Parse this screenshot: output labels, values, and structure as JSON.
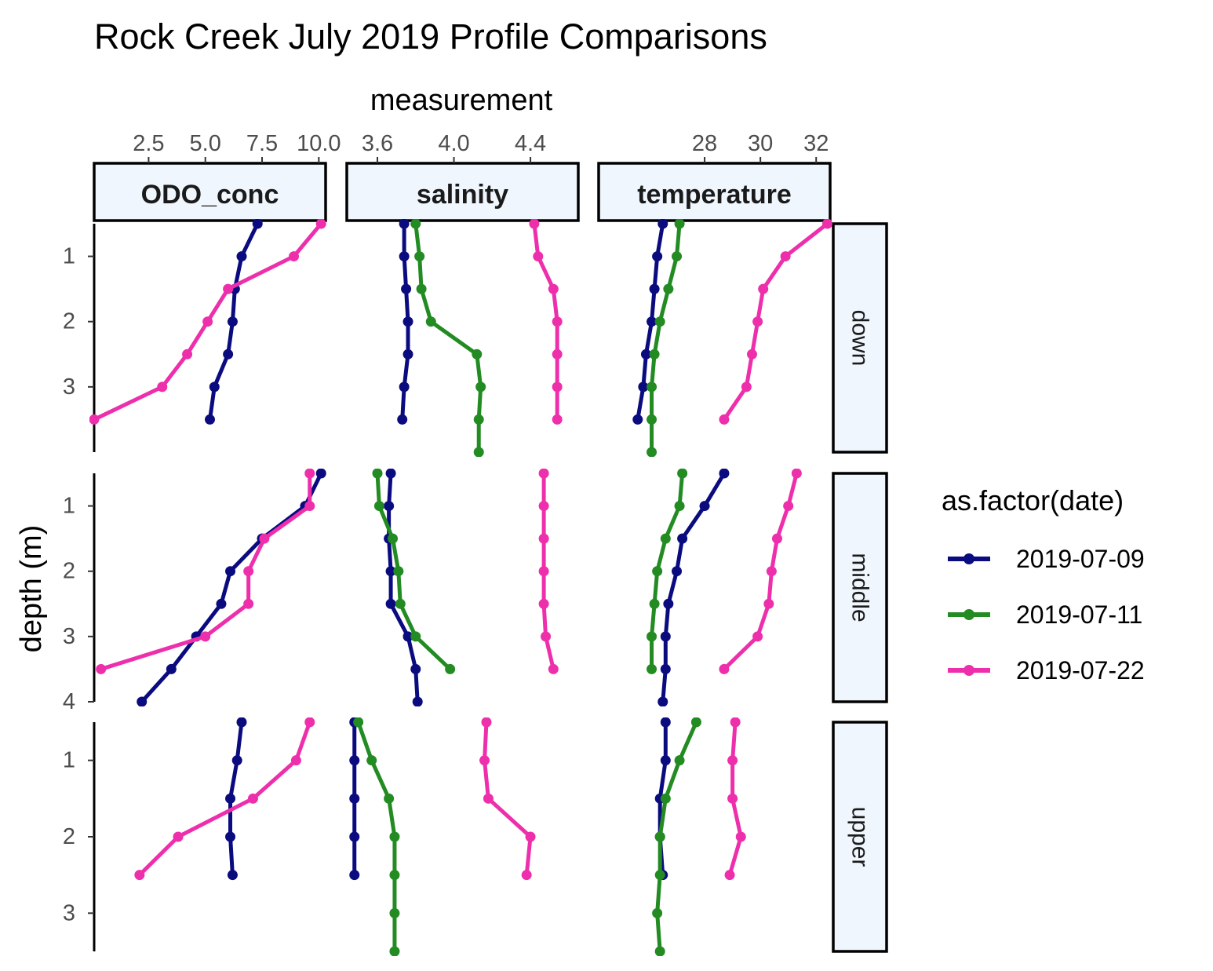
{
  "chart_data": {
    "type": "line",
    "title": "Rock Creek July 2019 Profile Comparisons",
    "xlabel": "measurement",
    "ylabel": "depth (m)",
    "y_reversed": true,
    "grid": false,
    "legend": {
      "title": "as.factor(date)",
      "placement": "right",
      "entries": [
        {
          "label": "2019-07-09",
          "color": "#0b0b80"
        },
        {
          "label": "2019-07-11",
          "color": "#228b22"
        },
        {
          "label": "2019-07-22",
          "color": "#ee2fac"
        }
      ]
    },
    "columns": [
      {
        "key": "ODO_conc",
        "label": "ODO_conc",
        "xlim": [
          0.1,
          10.3
        ],
        "xticks": [
          2.5,
          5.0,
          7.5,
          10.0
        ],
        "xtick_labels": [
          "2.5",
          "5.0",
          "7.5",
          "10.0"
        ]
      },
      {
        "key": "salinity",
        "label": "salinity",
        "xlim": [
          3.44,
          4.65
        ],
        "xticks": [
          3.6,
          4.0,
          4.4
        ],
        "xtick_labels": [
          "3.6",
          "4.0",
          "4.4"
        ]
      },
      {
        "key": "temperature",
        "label": "temperature",
        "xlim": [
          24.2,
          32.5
        ],
        "xticks": [
          28,
          30,
          32
        ],
        "xtick_labels": [
          "28",
          "30",
          "32"
        ]
      }
    ],
    "rows": [
      {
        "key": "down",
        "label": "down",
        "ylim": [
          0.5,
          4.0
        ],
        "yticks": [
          1,
          2,
          3
        ],
        "ytick_labels": [
          "1",
          "2",
          "3"
        ]
      },
      {
        "key": "middle",
        "label": "middle",
        "ylim": [
          0.5,
          4.0
        ],
        "yticks": [
          1,
          2,
          3,
          4
        ],
        "ytick_labels": [
          "1",
          "2",
          "3",
          "4"
        ]
      },
      {
        "key": "upper",
        "label": "upper",
        "ylim": [
          0.5,
          3.5
        ],
        "yticks": [
          1,
          2,
          3
        ],
        "ytick_labels": [
          "1",
          "2",
          "3"
        ]
      }
    ],
    "panels": [
      {
        "row": "down",
        "col": "ODO_conc",
        "series": [
          {
            "date": "2019-07-09",
            "points": [
              [
                0.5,
                7.3
              ],
              [
                1.0,
                6.6
              ],
              [
                1.5,
                6.3
              ],
              [
                2.0,
                6.2
              ],
              [
                2.5,
                6.0
              ],
              [
                3.0,
                5.4
              ],
              [
                3.5,
                5.2
              ]
            ]
          },
          {
            "date": "2019-07-22",
            "points": [
              [
                0.5,
                10.1
              ],
              [
                1.0,
                8.9
              ],
              [
                1.5,
                6.0
              ],
              [
                2.0,
                5.1
              ],
              [
                2.5,
                4.2
              ],
              [
                3.0,
                3.1
              ],
              [
                3.5,
                0.1
              ]
            ]
          }
        ]
      },
      {
        "row": "down",
        "col": "salinity",
        "series": [
          {
            "date": "2019-07-09",
            "points": [
              [
                0.5,
                3.74
              ],
              [
                1.0,
                3.74
              ],
              [
                1.5,
                3.75
              ],
              [
                2.0,
                3.76
              ],
              [
                2.5,
                3.76
              ],
              [
                3.0,
                3.74
              ],
              [
                3.5,
                3.73
              ]
            ]
          },
          {
            "date": "2019-07-11",
            "points": [
              [
                0.5,
                3.8
              ],
              [
                1.0,
                3.82
              ],
              [
                1.5,
                3.83
              ],
              [
                2.0,
                3.88
              ],
              [
                2.5,
                4.12
              ],
              [
                3.0,
                4.14
              ],
              [
                3.5,
                4.13
              ],
              [
                4.0,
                4.13
              ]
            ]
          },
          {
            "date": "2019-07-22",
            "points": [
              [
                0.5,
                4.42
              ],
              [
                1.0,
                4.44
              ],
              [
                1.5,
                4.52
              ],
              [
                2.0,
                4.54
              ],
              [
                2.5,
                4.54
              ],
              [
                3.0,
                4.54
              ],
              [
                3.5,
                4.54
              ]
            ]
          }
        ]
      },
      {
        "row": "down",
        "col": "temperature",
        "series": [
          {
            "date": "2019-07-09",
            "points": [
              [
                0.5,
                26.5
              ],
              [
                1.0,
                26.3
              ],
              [
                1.5,
                26.2
              ],
              [
                2.0,
                26.1
              ],
              [
                2.5,
                25.9
              ],
              [
                3.0,
                25.8
              ],
              [
                3.5,
                25.6
              ]
            ]
          },
          {
            "date": "2019-07-11",
            "points": [
              [
                0.5,
                27.1
              ],
              [
                1.0,
                27.0
              ],
              [
                1.5,
                26.7
              ],
              [
                2.0,
                26.4
              ],
              [
                2.5,
                26.2
              ],
              [
                3.0,
                26.1
              ],
              [
                3.5,
                26.1
              ],
              [
                4.0,
                26.1
              ]
            ]
          },
          {
            "date": "2019-07-22",
            "points": [
              [
                0.5,
                32.4
              ],
              [
                1.0,
                30.9
              ],
              [
                1.5,
                30.1
              ],
              [
                2.0,
                29.9
              ],
              [
                2.5,
                29.7
              ],
              [
                3.0,
                29.5
              ],
              [
                3.5,
                28.7
              ]
            ]
          }
        ]
      },
      {
        "row": "middle",
        "col": "ODO_conc",
        "series": [
          {
            "date": "2019-07-09",
            "points": [
              [
                0.5,
                10.1
              ],
              [
                1.0,
                9.4
              ],
              [
                1.5,
                7.5
              ],
              [
                2.0,
                6.1
              ],
              [
                2.5,
                5.7
              ],
              [
                3.0,
                4.6
              ],
              [
                3.5,
                3.5
              ],
              [
                4.0,
                2.2
              ]
            ]
          },
          {
            "date": "2019-07-22",
            "points": [
              [
                0.5,
                9.6
              ],
              [
                1.0,
                9.6
              ],
              [
                1.5,
                7.6
              ],
              [
                2.0,
                6.9
              ],
              [
                2.5,
                6.9
              ],
              [
                3.0,
                5.0
              ],
              [
                3.5,
                0.4
              ]
            ]
          }
        ]
      },
      {
        "row": "middle",
        "col": "salinity",
        "series": [
          {
            "date": "2019-07-09",
            "points": [
              [
                0.5,
                3.67
              ],
              [
                1.0,
                3.66
              ],
              [
                1.5,
                3.66
              ],
              [
                2.0,
                3.67
              ],
              [
                2.5,
                3.67
              ],
              [
                3.0,
                3.76
              ],
              [
                3.5,
                3.8
              ],
              [
                4.0,
                3.81
              ]
            ]
          },
          {
            "date": "2019-07-11",
            "points": [
              [
                0.5,
                3.6
              ],
              [
                1.0,
                3.61
              ],
              [
                1.5,
                3.68
              ],
              [
                2.0,
                3.71
              ],
              [
                2.5,
                3.72
              ],
              [
                3.0,
                3.8
              ],
              [
                3.5,
                3.98
              ]
            ]
          },
          {
            "date": "2019-07-22",
            "points": [
              [
                0.5,
                4.47
              ],
              [
                1.0,
                4.47
              ],
              [
                1.5,
                4.47
              ],
              [
                2.0,
                4.47
              ],
              [
                2.5,
                4.47
              ],
              [
                3.0,
                4.48
              ],
              [
                3.5,
                4.52
              ]
            ]
          }
        ]
      },
      {
        "row": "middle",
        "col": "temperature",
        "series": [
          {
            "date": "2019-07-09",
            "points": [
              [
                0.5,
                28.7
              ],
              [
                1.0,
                28.0
              ],
              [
                1.5,
                27.2
              ],
              [
                2.0,
                27.0
              ],
              [
                2.5,
                26.7
              ],
              [
                3.0,
                26.6
              ],
              [
                3.5,
                26.6
              ],
              [
                4.0,
                26.5
              ]
            ]
          },
          {
            "date": "2019-07-11",
            "points": [
              [
                0.5,
                27.2
              ],
              [
                1.0,
                27.1
              ],
              [
                1.5,
                26.6
              ],
              [
                2.0,
                26.3
              ],
              [
                2.5,
                26.2
              ],
              [
                3.0,
                26.1
              ],
              [
                3.5,
                26.1
              ]
            ]
          },
          {
            "date": "2019-07-22",
            "points": [
              [
                0.5,
                31.3
              ],
              [
                1.0,
                31.0
              ],
              [
                1.5,
                30.6
              ],
              [
                2.0,
                30.4
              ],
              [
                2.5,
                30.3
              ],
              [
                3.0,
                29.9
              ],
              [
                3.5,
                28.7
              ]
            ]
          }
        ]
      },
      {
        "row": "upper",
        "col": "ODO_conc",
        "series": [
          {
            "date": "2019-07-09",
            "points": [
              [
                0.5,
                6.6
              ],
              [
                1.0,
                6.4
              ],
              [
                1.5,
                6.1
              ],
              [
                2.0,
                6.1
              ],
              [
                2.5,
                6.2
              ]
            ]
          },
          {
            "date": "2019-07-22",
            "points": [
              [
                0.5,
                9.6
              ],
              [
                1.0,
                9.0
              ],
              [
                1.5,
                7.1
              ],
              [
                2.0,
                3.8
              ],
              [
                2.5,
                2.1
              ]
            ]
          }
        ]
      },
      {
        "row": "upper",
        "col": "salinity",
        "series": [
          {
            "date": "2019-07-09",
            "points": [
              [
                0.5,
                3.48
              ],
              [
                1.0,
                3.48
              ],
              [
                1.5,
                3.48
              ],
              [
                2.0,
                3.48
              ],
              [
                2.5,
                3.48
              ]
            ]
          },
          {
            "date": "2019-07-11",
            "points": [
              [
                0.5,
                3.5
              ],
              [
                1.0,
                3.57
              ],
              [
                1.5,
                3.66
              ],
              [
                2.0,
                3.69
              ],
              [
                2.5,
                3.69
              ],
              [
                3.0,
                3.69
              ],
              [
                3.5,
                3.69
              ]
            ]
          },
          {
            "date": "2019-07-22",
            "points": [
              [
                0.5,
                4.17
              ],
              [
                1.0,
                4.16
              ],
              [
                1.5,
                4.18
              ],
              [
                2.0,
                4.4
              ],
              [
                2.5,
                4.38
              ]
            ]
          }
        ]
      },
      {
        "row": "upper",
        "col": "temperature",
        "series": [
          {
            "date": "2019-07-09",
            "points": [
              [
                0.5,
                26.6
              ],
              [
                1.0,
                26.6
              ],
              [
                1.5,
                26.4
              ],
              [
                2.0,
                26.4
              ],
              [
                2.5,
                26.5
              ]
            ]
          },
          {
            "date": "2019-07-11",
            "points": [
              [
                0.5,
                27.7
              ],
              [
                1.0,
                27.1
              ],
              [
                1.5,
                26.6
              ],
              [
                2.0,
                26.4
              ],
              [
                2.5,
                26.4
              ],
              [
                3.0,
                26.3
              ],
              [
                3.5,
                26.4
              ]
            ]
          },
          {
            "date": "2019-07-22",
            "points": [
              [
                0.5,
                29.1
              ],
              [
                1.0,
                29.0
              ],
              [
                1.5,
                29.0
              ],
              [
                2.0,
                29.3
              ],
              [
                2.5,
                28.9
              ]
            ]
          }
        ]
      }
    ]
  }
}
